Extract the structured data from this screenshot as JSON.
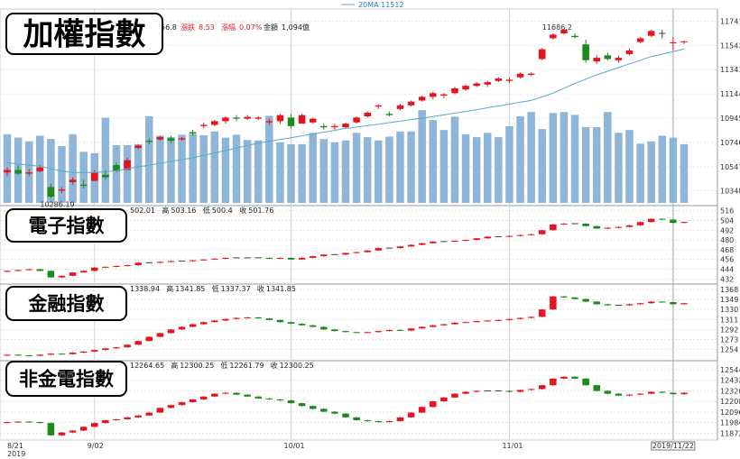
{
  "colors": {
    "up": "#e6141e",
    "down": "#1a8a1a",
    "flat": "#444444",
    "volume": "#8fb6d8",
    "ma": "#5aa8c8",
    "grid": "#d4d4d4",
    "peak_label": "#f2a0b0"
  },
  "legend": {
    "ma_label": "20MA 11512"
  },
  "x_axis": {
    "labels": [
      {
        "text": "8/21",
        "index": 0
      },
      {
        "text": "9/02",
        "index": 8
      },
      {
        "text": "10/01",
        "index": 26
      },
      {
        "text": "11/01",
        "index": 46
      },
      {
        "text": "2019/11/22",
        "index": 61
      }
    ],
    "year_label": "2019"
  },
  "chart_data": [
    {
      "type": "candlestick",
      "title": "加權指數",
      "info": {
        "close_partial": "56.8",
        "change_label": "漲跌",
        "change": "8.53",
        "pct_label": "漲幅",
        "pct": "0.07%",
        "amount_label": "金額",
        "amount": "1,094億"
      },
      "y_ticks": [
        "11741",
        "11542",
        "11343",
        "11144",
        "10945",
        "10746",
        "10547",
        "10348"
      ],
      "ylim": [
        10250,
        11840
      ],
      "annotations": [
        {
          "text": "11686.2",
          "index": 50
        },
        {
          "text": "10286.19",
          "index": 4
        }
      ],
      "ohlc": [
        [
          10500,
          10540,
          10470,
          10520
        ],
        [
          10520,
          10560,
          10480,
          10490
        ],
        [
          10490,
          10530,
          10470,
          10500
        ],
        [
          10510,
          10560,
          10500,
          10540
        ],
        [
          10380,
          10410,
          10290,
          10300
        ],
        [
          10350,
          10380,
          10330,
          10360
        ],
        [
          10420,
          10460,
          10400,
          10440
        ],
        [
          10400,
          10440,
          10370,
          10390
        ],
        [
          10430,
          10520,
          10430,
          10500
        ],
        [
          10480,
          10520,
          10440,
          10460
        ],
        [
          10560,
          10580,
          10500,
          10510
        ],
        [
          10520,
          10620,
          10520,
          10600
        ],
        [
          10700,
          10730,
          10690,
          10720
        ],
        [
          10760,
          10780,
          10730,
          10750
        ],
        [
          10770,
          10800,
          10760,
          10790
        ],
        [
          10780,
          10800,
          10740,
          10760
        ],
        [
          10770,
          10790,
          10760,
          10780
        ],
        [
          10830,
          10850,
          10800,
          10820
        ],
        [
          10880,
          10910,
          10860,
          10890
        ],
        [
          10890,
          10930,
          10880,
          10920
        ],
        [
          10920,
          10960,
          10900,
          10950
        ],
        [
          10950,
          10970,
          10920,
          10940
        ],
        [
          10940,
          10970,
          10930,
          10955
        ],
        [
          10940,
          10960,
          10930,
          10950
        ],
        [
          10910,
          10940,
          10890,
          10920
        ],
        [
          10920,
          10980,
          10900,
          10970
        ],
        [
          10950,
          10980,
          10860,
          10880
        ],
        [
          10900,
          10980,
          10900,
          10970
        ],
        [
          10910,
          10950,
          10900,
          10940
        ],
        [
          10880,
          10900,
          10850,
          10870
        ],
        [
          10870,
          10900,
          10850,
          10880
        ],
        [
          10870,
          10910,
          10860,
          10900
        ],
        [
          10910,
          10960,
          10900,
          10950
        ],
        [
          10960,
          11000,
          10950,
          10990
        ],
        [
          11040,
          11060,
          11020,
          11050
        ],
        [
          10980,
          11000,
          10960,
          10970
        ],
        [
          11020,
          11060,
          11010,
          11050
        ],
        [
          11050,
          11090,
          11040,
          11080
        ],
        [
          11090,
          11130,
          11080,
          11120
        ],
        [
          11120,
          11160,
          11100,
          11150
        ],
        [
          11130,
          11150,
          11110,
          11140
        ],
        [
          11150,
          11200,
          11140,
          11190
        ],
        [
          11180,
          11220,
          11170,
          11210
        ],
        [
          11210,
          11240,
          11200,
          11230
        ],
        [
          11220,
          11250,
          11200,
          11240
        ],
        [
          11250,
          11280,
          11240,
          11270
        ],
        [
          11250,
          11280,
          11230,
          11260
        ],
        [
          11280,
          11320,
          11270,
          11310
        ],
        [
          11300,
          11320,
          11290,
          11310
        ],
        [
          11430,
          11520,
          11420,
          11510
        ],
        [
          11600,
          11640,
          11590,
          11630
        ],
        [
          11640,
          11680,
          11630,
          11670
        ],
        [
          11620,
          11640,
          11600,
          11610
        ],
        [
          11550,
          11590,
          11400,
          11420
        ],
        [
          11410,
          11460,
          11390,
          11440
        ],
        [
          11460,
          11480,
          11420,
          11430
        ],
        [
          11420,
          11460,
          11400,
          11440
        ],
        [
          11470,
          11520,
          11460,
          11500
        ],
        [
          11570,
          11610,
          11560,
          11600
        ],
        [
          11620,
          11670,
          11610,
          11660
        ],
        [
          11640,
          11670,
          11600,
          11640
        ],
        [
          11560,
          11610,
          11500,
          11566
        ],
        [
          11568,
          11580,
          11550,
          11575
        ]
      ],
      "ma20": [
        10580,
        10570,
        10560,
        10550,
        10530,
        10510,
        10500,
        10500,
        10500,
        10505,
        10515,
        10530,
        10545,
        10560,
        10575,
        10590,
        10605,
        10620,
        10640,
        10660,
        10680,
        10700,
        10720,
        10740,
        10755,
        10770,
        10785,
        10800,
        10815,
        10830,
        10845,
        10860,
        10872,
        10884,
        10895,
        10908,
        10920,
        10933,
        10945,
        10958,
        10972,
        10986,
        11000,
        11015,
        11030,
        11045,
        11060,
        11075,
        11090,
        11120,
        11150,
        11190,
        11230,
        11265,
        11300,
        11330,
        11360,
        11390,
        11420,
        11450,
        11470,
        11490,
        11512
      ],
      "volume_ylim": [
        0,
        2000
      ],
      "volume": [
        1450,
        1380,
        1300,
        1420,
        1350,
        1200,
        1450,
        1080,
        1050,
        1800,
        1220,
        1220,
        1240,
        1830,
        1420,
        1390,
        1440,
        1460,
        1430,
        1510,
        1380,
        1440,
        1330,
        1320,
        1840,
        1280,
        1240,
        1240,
        1480,
        1350,
        1280,
        1320,
        1480,
        1390,
        1320,
        1400,
        1510,
        1510,
        1960,
        1750,
        1540,
        1820,
        1450,
        1390,
        1480,
        1390,
        1620,
        1830,
        1920,
        1560,
        1900,
        1920,
        1860,
        1600,
        1600,
        1920,
        1480,
        1540,
        1250,
        1300,
        1420,
        1380,
        1240
      ]
    },
    {
      "type": "candlestick",
      "title": "電子指數",
      "info": {
        "open_label": "開",
        "open": "502.01",
        "high_label": "高",
        "high": "503.16",
        "low_label": "低",
        "low": "500.4",
        "close_label": "收",
        "close": "501.76"
      },
      "y_ticks": [
        "516",
        "504",
        "492",
        "480",
        "468",
        "456",
        "444",
        "432"
      ],
      "ylim": [
        428,
        520
      ],
      "trend": [
        442,
        443,
        444,
        442,
        434,
        436,
        440,
        442,
        446,
        447,
        448,
        449,
        452,
        452,
        453,
        454,
        454,
        455,
        456,
        457,
        458,
        458,
        458,
        458,
        457,
        458,
        456,
        458,
        460,
        462,
        462,
        464,
        465,
        467,
        470,
        470,
        472,
        474,
        476,
        478,
        478,
        479,
        480,
        482,
        484,
        484,
        485,
        486,
        487,
        492,
        499,
        500,
        500,
        497,
        494,
        495,
        496,
        498,
        502,
        506,
        505,
        501,
        502
      ]
    },
    {
      "type": "candlestick",
      "title": "金融指數",
      "info": {
        "open_label": "開",
        "open": "1338.94",
        "high_label": "高",
        "high": "1341.85",
        "low_label": "低",
        "low": "1337.37",
        "close_label": "收",
        "close": "1341.85"
      },
      "y_ticks": [
        "1368",
        "1349",
        "1330",
        "1311",
        "1292",
        "1273",
        "1254"
      ],
      "ylim": [
        1236,
        1375
      ],
      "trend": [
        1244,
        1243,
        1242,
        1244,
        1246,
        1245,
        1248,
        1250,
        1253,
        1256,
        1258,
        1263,
        1270,
        1278,
        1285,
        1292,
        1297,
        1302,
        1306,
        1309,
        1312,
        1314,
        1315,
        1313,
        1310,
        1306,
        1303,
        1300,
        1297,
        1292,
        1289,
        1287,
        1286,
        1287,
        1289,
        1291,
        1290,
        1294,
        1297,
        1300,
        1302,
        1305,
        1306,
        1308,
        1309,
        1310,
        1312,
        1314,
        1316,
        1330,
        1355,
        1353,
        1350,
        1345,
        1340,
        1338,
        1338,
        1340,
        1342,
        1345,
        1344,
        1340,
        1342
      ]
    },
    {
      "type": "candlestick",
      "title": "非金電指數",
      "info": {
        "open_label": "開",
        "open": "12264.65",
        "high_label": "高",
        "high": "12300.25",
        "low_label": "低",
        "low": "12261.79",
        "close_label": "收",
        "close": "12300.25"
      },
      "y_ticks": [
        "12544",
        "12432",
        "12320",
        "12208",
        "12096",
        "11984",
        "11872"
      ],
      "ylim": [
        11800,
        12620
      ],
      "trend": [
        11990,
        11995,
        11990,
        11980,
        11850,
        11880,
        11900,
        11940,
        11980,
        12010,
        12020,
        12040,
        12060,
        12090,
        12140,
        12170,
        12200,
        12230,
        12260,
        12290,
        12300,
        12280,
        12260,
        12240,
        12230,
        12220,
        12190,
        12160,
        12130,
        12100,
        12080,
        12040,
        12010,
        12000,
        11990,
        12000,
        12040,
        12090,
        12150,
        12210,
        12250,
        12290,
        12310,
        12320,
        12320,
        12320,
        12310,
        12330,
        12340,
        12380,
        12450,
        12470,
        12450,
        12380,
        12320,
        12290,
        12270,
        12280,
        12290,
        12310,
        12300,
        12285,
        12300
      ]
    }
  ]
}
